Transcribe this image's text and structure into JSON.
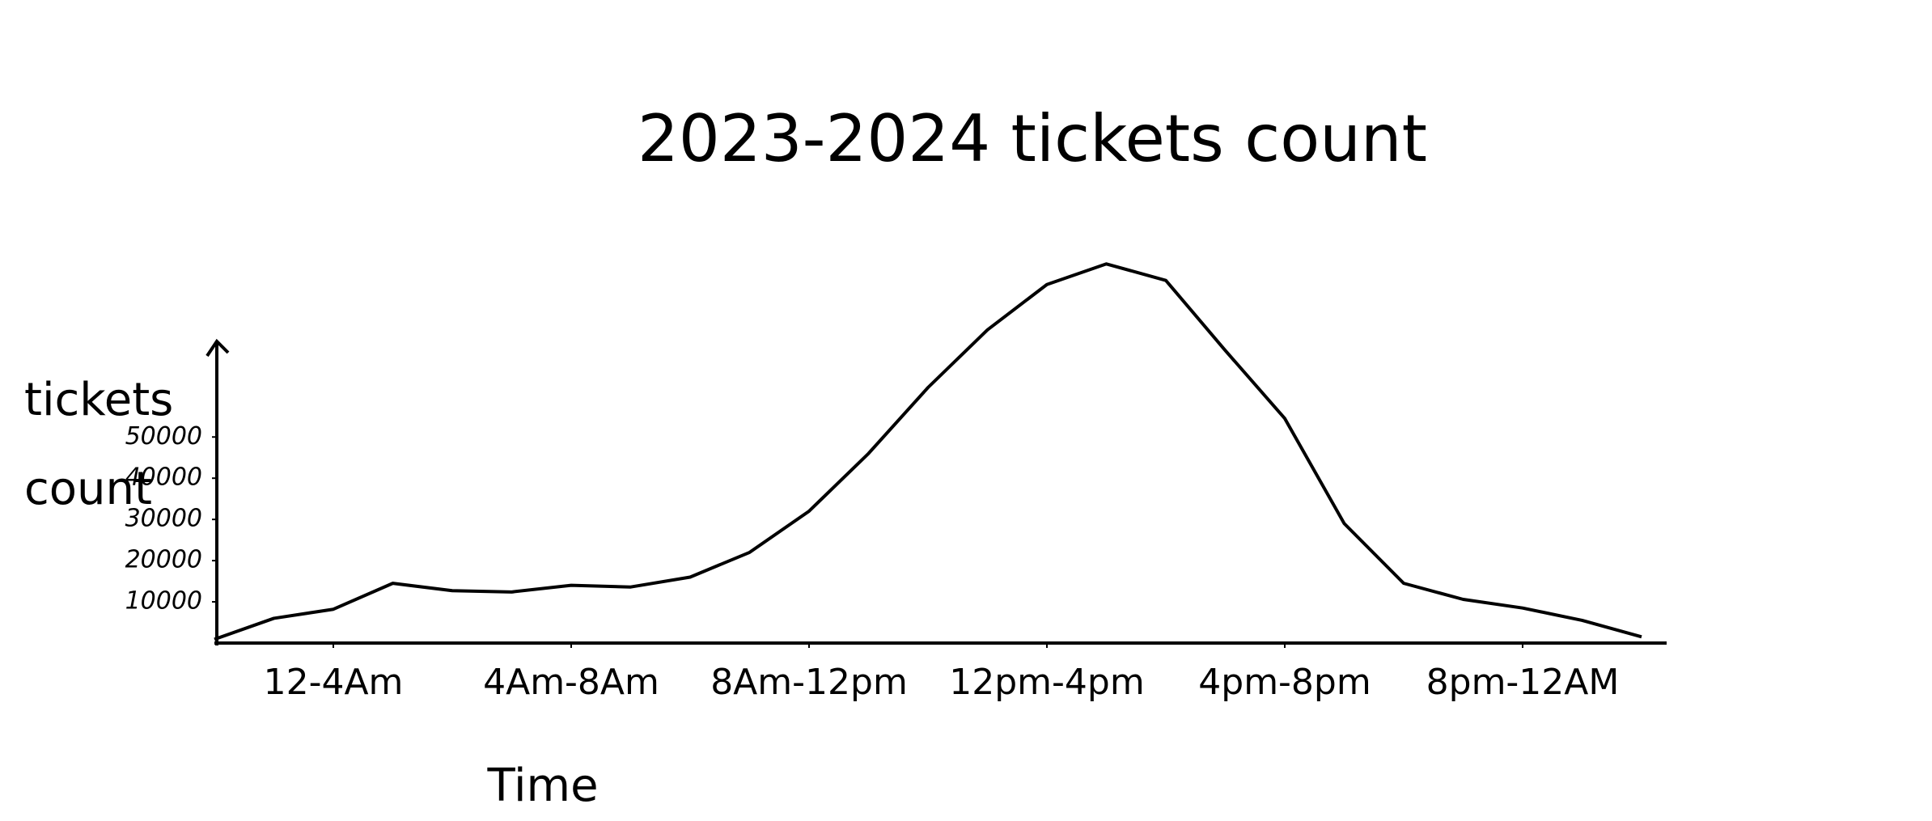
{
  "chart_data": {
    "type": "line",
    "title": "2023-2024 tickets count",
    "x_label": "Time",
    "y_label": "tickets count",
    "x": [
      0,
      1,
      2,
      3,
      4,
      5,
      6,
      7,
      8,
      9,
      10,
      11,
      12,
      13,
      14,
      15,
      16,
      17,
      18,
      19,
      20,
      21,
      22,
      23,
      24
    ],
    "series": [
      {
        "name": "tickets count",
        "color": "#000000",
        "values": [
          900,
          6000,
          8200,
          14500,
          12700,
          12400,
          14000,
          13600,
          16000,
          22000,
          32000,
          46000,
          62000,
          76000,
          87000,
          92000,
          88000,
          71000,
          54500,
          29000,
          14500,
          10600,
          8500,
          5500,
          1500
        ]
      }
    ],
    "xlim": [
      0,
      24
    ],
    "xticks": [
      {
        "value": 2,
        "label": "12-4Am"
      },
      {
        "value": 6,
        "label": "4Am-8Am"
      },
      {
        "value": 10,
        "label": "8Am-12pm"
      },
      {
        "value": 14,
        "label": "12pm-4pm"
      },
      {
        "value": 18,
        "label": "4pm-8pm"
      },
      {
        "value": 22,
        "label": "8pm-12AM"
      }
    ],
    "ylim": [
      0,
      95000
    ],
    "yticks": [
      10000,
      20000,
      30000,
      40000,
      50000
    ],
    "grid": false,
    "legend": false
  }
}
